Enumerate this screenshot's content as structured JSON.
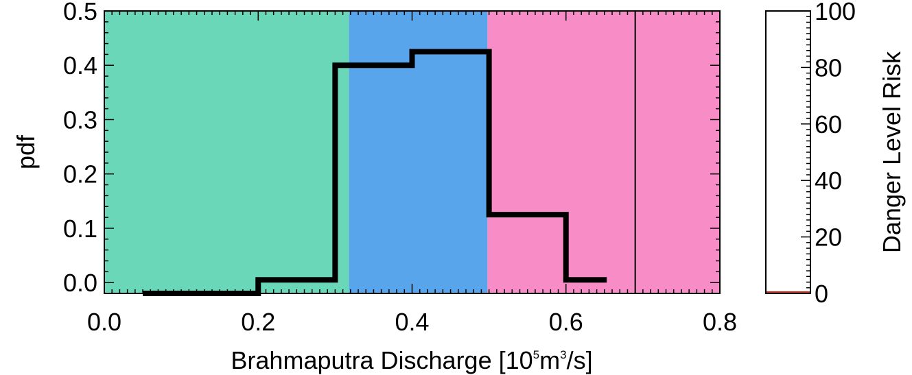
{
  "chart_data": [
    {
      "type": "bar",
      "title": "",
      "xlabel": {
        "prefix": "Brahmaputra Discharge [10",
        "sup1": "5",
        "mid": "m",
        "sup2": "3",
        "suffix": "/s]"
      },
      "ylabel": "pdf",
      "xlim": [
        0.0,
        0.8
      ],
      "ylim": [
        -0.02,
        0.5
      ],
      "xticks": [
        "0.0",
        "0.2",
        "0.4",
        "0.6",
        "0.8"
      ],
      "yticks": [
        "0.0",
        "0.1",
        "0.2",
        "0.3",
        "0.4",
        "0.5"
      ],
      "xtick_values": [
        0.0,
        0.2,
        0.4,
        0.6,
        0.8
      ],
      "ytick_values": [
        0.0,
        0.1,
        0.2,
        0.3,
        0.4,
        0.5
      ],
      "bins": [
        {
          "x0": 0.05,
          "x1": 0.1,
          "value": -0.02
        },
        {
          "x0": 0.1,
          "x1": 0.2,
          "value": -0.02
        },
        {
          "x0": 0.2,
          "x1": 0.3,
          "value": 0.005
        },
        {
          "x0": 0.3,
          "x1": 0.4,
          "value": 0.4
        },
        {
          "x0": 0.4,
          "x1": 0.5,
          "value": 0.425
        },
        {
          "x0": 0.5,
          "x1": 0.6,
          "value": 0.125
        },
        {
          "x0": 0.6,
          "x1": 0.653,
          "value": 0.005
        }
      ],
      "regions": [
        {
          "x0": 0.0,
          "x1": 0.318,
          "color": "#6ad8b8"
        },
        {
          "x0": 0.318,
          "x1": 0.498,
          "color": "#58a5ec"
        },
        {
          "x0": 0.498,
          "x1": 0.8,
          "color": "#f78cc6"
        }
      ],
      "threshold_line": 0.69,
      "grid": false
    },
    {
      "type": "bar",
      "ylabel": "Danger Level Risk",
      "ylim": [
        0,
        100
      ],
      "yticks": [
        "0",
        "20",
        "40",
        "60",
        "80",
        "100"
      ],
      "ytick_values": [
        0,
        20,
        40,
        60,
        80,
        100
      ],
      "values": [
        0
      ],
      "bar_color": "#e02010"
    }
  ]
}
